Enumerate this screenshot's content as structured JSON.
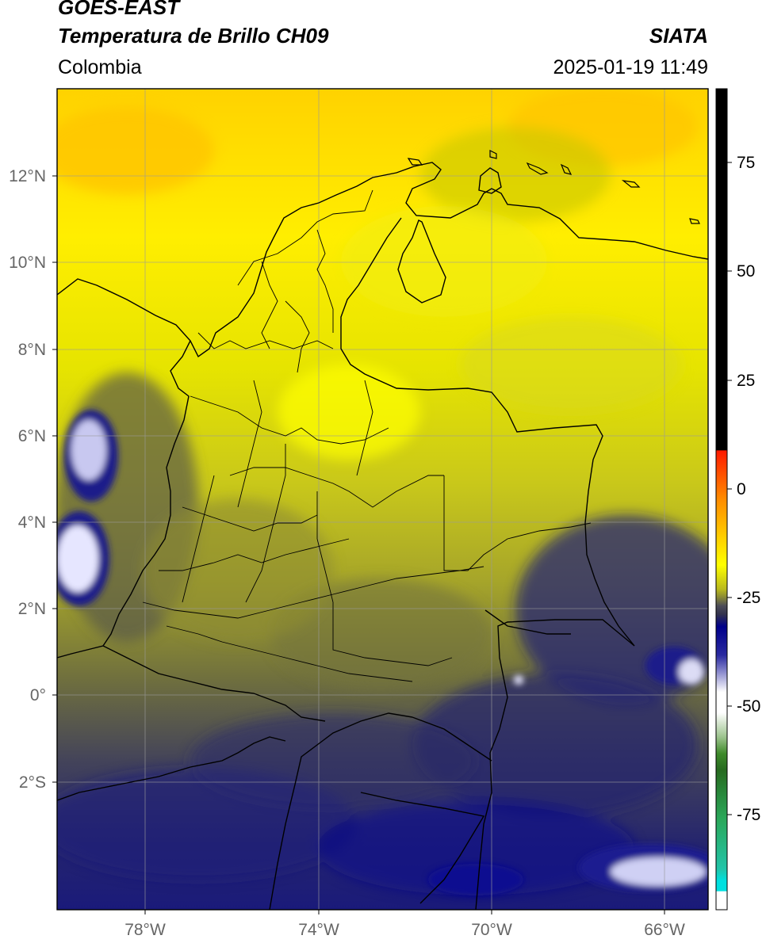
{
  "header": {
    "satellite": "GOES-EAST",
    "product": "Temperatura de Brillo CH09",
    "source": "SIATA",
    "region": "Colombia",
    "timestamp": "2025-01-19 11:49"
  },
  "map": {
    "lon_range": [
      -80.0,
      -65.0
    ],
    "lat_range": [
      -5.0,
      14.0
    ],
    "grid": true,
    "lon_ticks": [
      "78°W",
      "74°W",
      "70°W",
      "66°W"
    ],
    "lat_ticks": [
      "12°N",
      "10°N",
      "8°N",
      "6°N",
      "4°N",
      "2°N",
      "0°",
      "2°S"
    ]
  },
  "colorbar": {
    "ticks": [
      "75",
      "50",
      "25",
      "0",
      "-25",
      "-50",
      "-75"
    ],
    "colors": {
      "black": "#000000",
      "red": "#ff1a00",
      "orange": "#ff9900",
      "yellow": "#ffff00",
      "olive": "#9a9a28",
      "slate": "#3b3b5a",
      "navy": "#00007a",
      "white": "#ffffff",
      "green": "#2e7d1e",
      "teal": "#00d0c8"
    }
  }
}
